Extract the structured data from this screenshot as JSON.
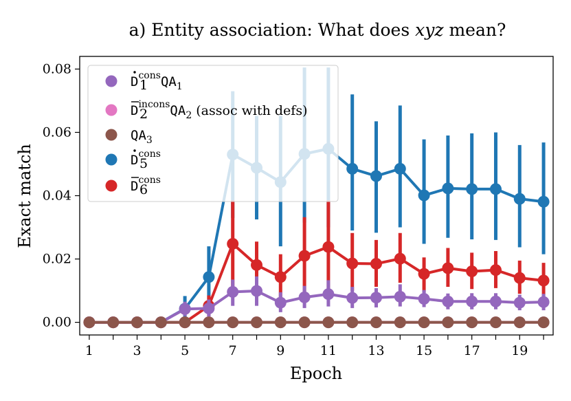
{
  "chart_data": {
    "type": "line",
    "title": {
      "prefix": "a) Entity association: What does ",
      "emph": "xyz",
      "suffix": " mean?"
    },
    "xlabel": "Epoch",
    "ylabel": "Exact match",
    "xlim": [
      0.6,
      20.4
    ],
    "ylim": [
      -0.004,
      0.084
    ],
    "xticks": [
      1,
      2,
      3,
      4,
      5,
      6,
      7,
      8,
      9,
      10,
      11,
      12,
      13,
      14,
      15,
      16,
      17,
      18,
      19,
      20
    ],
    "xtick_labels": [
      "1",
      "",
      "3",
      "",
      "5",
      "",
      "7",
      "",
      "9",
      "",
      "11",
      "",
      "13",
      "",
      "15",
      "",
      "17",
      "",
      "19",
      ""
    ],
    "yticks": [
      0.0,
      0.02,
      0.04,
      0.06,
      0.08
    ],
    "ytick_labels": [
      "0.00",
      "0.02",
      "0.04",
      "0.06",
      "0.08"
    ],
    "grid": false,
    "legend_position": "top-left",
    "x": [
      1,
      2,
      3,
      4,
      5,
      6,
      7,
      8,
      9,
      10,
      11,
      12,
      13,
      14,
      15,
      16,
      17,
      18,
      19,
      20
    ],
    "series": [
      {
        "key": "d5",
        "label_base": "D",
        "label_mark": "dot",
        "label_sub": "5",
        "label_sup": "cons",
        "label_rest": "",
        "color": "#1f77b4",
        "values": [
          0,
          0,
          0,
          0,
          0.0043,
          0.0143,
          0.053,
          0.0488,
          0.0443,
          0.0532,
          0.0548,
          0.0485,
          0.0462,
          0.0485,
          0.0401,
          0.0423,
          0.0421,
          0.0421,
          0.039,
          0.0381
        ],
        "err_low": [
          0,
          0,
          0,
          0,
          0.0003,
          0.0033,
          0.033,
          0.0325,
          0.024,
          0.0315,
          0.03,
          0.029,
          0.0283,
          0.03,
          0.0248,
          0.0267,
          0.0262,
          0.026,
          0.0237,
          0.0215
        ],
        "err_high": [
          0,
          0,
          0,
          0,
          0.0083,
          0.024,
          0.073,
          0.0652,
          0.0652,
          0.0805,
          0.0805,
          0.072,
          0.0635,
          0.0685,
          0.0578,
          0.059,
          0.0597,
          0.06,
          0.056,
          0.0568
        ]
      },
      {
        "key": "d6",
        "label_base": "D",
        "label_mark": "bar",
        "label_sub": "6",
        "label_sup": "cons",
        "label_rest": "",
        "color": "#d62728",
        "values": [
          0,
          0,
          0,
          0,
          0,
          0.0052,
          0.0248,
          0.0181,
          0.0143,
          0.021,
          0.0238,
          0.0186,
          0.0185,
          0.0201,
          0.0153,
          0.0171,
          0.0161,
          0.0165,
          0.014,
          0.0132
        ],
        "err_low": [
          0,
          0,
          0,
          0,
          0,
          0.002,
          0.011,
          0.0105,
          0.008,
          0.0095,
          0.0105,
          0.01,
          0.0112,
          0.0125,
          0.0095,
          0.0112,
          0.0105,
          0.0108,
          0.009,
          0.0082
        ],
        "err_high": [
          0,
          0,
          0,
          0,
          0,
          0.0085,
          0.0385,
          0.0255,
          0.0215,
          0.0332,
          0.0385,
          0.0282,
          0.026,
          0.0282,
          0.0205,
          0.0235,
          0.022,
          0.0225,
          0.0195,
          0.0188
        ]
      },
      {
        "key": "d1",
        "label_base": "D",
        "label_mark": "dot",
        "label_sub": "1",
        "label_sup": "cons",
        "label_rest": "QA1",
        "color": "#9467bd",
        "values": [
          0,
          0,
          0,
          0,
          0.0042,
          0.0044,
          0.0096,
          0.0099,
          0.0062,
          0.0079,
          0.0089,
          0.0077,
          0.0078,
          0.0081,
          0.0074,
          0.0066,
          0.0066,
          0.0066,
          0.0062,
          0.0064
        ],
        "err_low": [
          0,
          0,
          0,
          0,
          0.002,
          0.0018,
          0.0052,
          0.0052,
          0.0032,
          0.0045,
          0.005,
          0.0045,
          0.0047,
          0.005,
          0.0048,
          0.0041,
          0.0041,
          0.0041,
          0.0038,
          0.0038
        ],
        "err_high": [
          0,
          0,
          0,
          0,
          0.0065,
          0.0072,
          0.0135,
          0.0145,
          0.0095,
          0.0115,
          0.0133,
          0.0112,
          0.0108,
          0.012,
          0.0102,
          0.0091,
          0.0092,
          0.0092,
          0.0087,
          0.009
        ]
      },
      {
        "key": "d2",
        "label_base": "D",
        "label_mark": "bar",
        "label_sub": "2",
        "label_sup": "incons",
        "label_rest": "QA2 (assoc with defs)",
        "color": "#e377c2",
        "values": [
          0,
          0,
          0,
          0,
          0,
          0,
          0,
          0,
          0,
          0,
          0,
          0,
          0,
          0,
          0,
          0,
          0,
          0,
          0,
          0
        ],
        "err_low": [
          0,
          0,
          0,
          0,
          0,
          0,
          0,
          0,
          0,
          0,
          0,
          0,
          0,
          0,
          0,
          0,
          0,
          0,
          0,
          0
        ],
        "err_high": [
          0,
          0,
          0,
          0,
          0,
          0,
          0,
          0,
          0,
          0,
          0,
          0,
          0,
          0,
          0,
          0,
          0,
          0,
          0,
          0
        ]
      },
      {
        "key": "qa3",
        "label_base": "",
        "label_mark": "",
        "label_sub": "",
        "label_sup": "",
        "label_rest": "QA3",
        "color": "#8c564b",
        "values": [
          0,
          0,
          0,
          0,
          0,
          0,
          0,
          0,
          0,
          0,
          0,
          0,
          0,
          0,
          0,
          0,
          0,
          0,
          0,
          0
        ],
        "err_low": [
          0,
          0,
          0,
          0,
          0,
          0,
          0,
          0,
          0,
          0,
          0,
          0,
          0,
          0,
          0,
          0,
          0,
          0,
          0,
          0
        ],
        "err_high": [
          0,
          0,
          0,
          0,
          0,
          0,
          0,
          0,
          0,
          0,
          0,
          0,
          0,
          0,
          0,
          0,
          0,
          0,
          0,
          0
        ]
      }
    ],
    "legend_order": [
      "d1",
      "d2",
      "qa3",
      "d5",
      "d6"
    ]
  }
}
